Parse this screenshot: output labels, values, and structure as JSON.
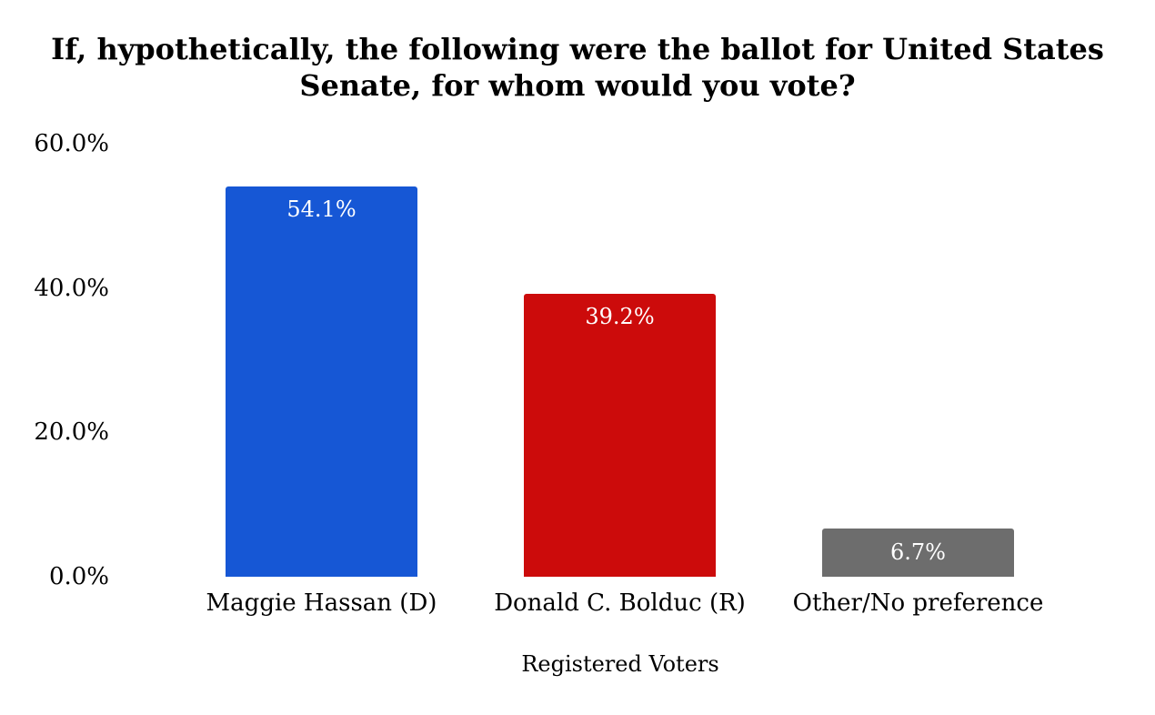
{
  "title_lines": [
    "If, hypothetically, the following were the ballot for United States",
    "Senate, for whom would you vote?"
  ],
  "chart_data": {
    "type": "bar",
    "title": "If, hypothetically, the following were the ballot for United States Senate, for whom would you vote?",
    "categories": [
      "Maggie Hassan (D)",
      "Donald C. Bolduc (R)",
      "Other/No preference"
    ],
    "values": [
      54.1,
      39.2,
      6.7
    ],
    "value_labels": [
      "54.1%",
      "39.2%",
      "6.7%"
    ],
    "bar_colors": [
      "#1657d5",
      "#cc0b0b",
      "#6d6d6d"
    ],
    "value_label_color": "#ffffff",
    "xlabel": "Registered Voters",
    "ylabel": "",
    "ylim": [
      0,
      60
    ],
    "yticks": [
      0,
      20,
      40,
      60
    ],
    "ytick_labels": [
      "0.0%",
      "20.0%",
      "40.0%",
      "60.0%"
    ],
    "grid": false,
    "legend": false
  }
}
